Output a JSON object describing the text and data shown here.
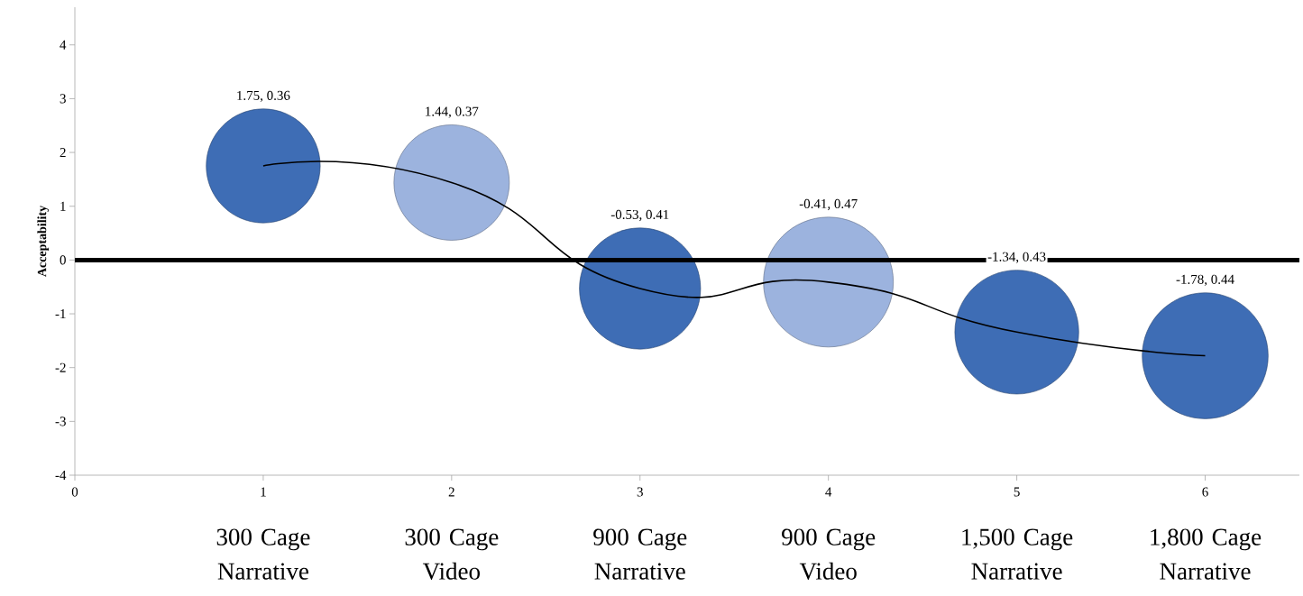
{
  "chart_data": {
    "type": "bubble",
    "ylabel": "Acceptability",
    "x": [
      1,
      2,
      3,
      4,
      5,
      6
    ],
    "xlim": [
      0,
      6.5
    ],
    "xticks": [
      0,
      1,
      2,
      3,
      4,
      5,
      6
    ],
    "ylim": [
      -4,
      4.7
    ],
    "yticks": [
      -4,
      -3,
      -2,
      -1,
      0,
      1,
      2,
      3,
      4
    ],
    "series": [
      {
        "values": [
          1.75,
          1.44,
          -0.53,
          -0.41,
          -1.34,
          -1.78
        ],
        "sizes": [
          0.77,
          0.79,
          0.87,
          1,
          0.91,
          0.94
        ],
        "colors": [
          "#3e6db5",
          "#9cb3de",
          "#3e6db5",
          "#9cb3de",
          "#3e6db5",
          "#3e6db5"
        ],
        "value_labels": [
          "1.75, 0.36",
          "1.44, 0.37",
          "-0.53, 0.41",
          "-0.41, 0.47",
          "-1.34, 0.43",
          "-1.78, 0.44"
        ]
      },
      {
        "type": "line",
        "color": "#000000",
        "values": [
          1.75,
          1.44,
          -0.53,
          -0.41,
          -1.34,
          -1.78
        ]
      }
    ],
    "ref_lines": [
      {
        "axis": "y",
        "value": 0,
        "color": "#000000"
      }
    ],
    "annotations": [
      "300 Cage Narrative",
      "300 Cage Video",
      "900 Cage Narrative",
      "900 Cage Video",
      "1,500 Cage Narrative",
      "1,800 Cage Narrative"
    ]
  }
}
